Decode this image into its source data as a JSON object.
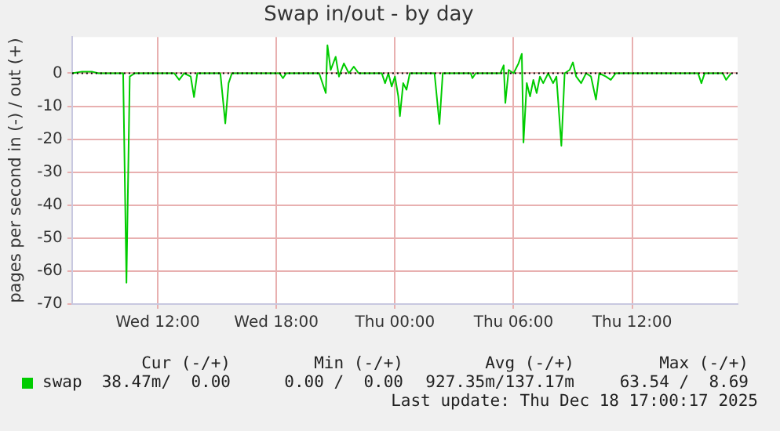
{
  "chart_data": {
    "type": "line",
    "title": "Swap in/out - by day",
    "ylabel": "pages per second in (-) / out (+)",
    "xlim": [
      "2025-12-17T07:40",
      "2025-12-18T17:20"
    ],
    "xticks": [
      {
        "value": "2025-12-17T12:00",
        "label": "Wed 12:00"
      },
      {
        "value": "2025-12-17T18:00",
        "label": "Wed 18:00"
      },
      {
        "value": "2025-12-18T00:00",
        "label": "Thu 00:00"
      },
      {
        "value": "2025-12-18T06:00",
        "label": "Thu 06:00"
      },
      {
        "value": "2025-12-18T12:00",
        "label": "Thu 12:00"
      }
    ],
    "ylim": [
      -70,
      11
    ],
    "yticks": [
      -70,
      -60,
      -50,
      -40,
      -30,
      -20,
      -10,
      0
    ],
    "grid": true,
    "legend": "bottom left",
    "marker": "none",
    "line_style": "solid",
    "ref_lines": [
      {
        "axis": "y",
        "value": 0,
        "color": "#000000",
        "line_style": "dotted"
      }
    ],
    "x": [
      "2025-12-17T07:40",
      "2025-12-17T08:10",
      "2025-12-17T08:40",
      "2025-12-17T09:00",
      "2025-12-17T10:15",
      "2025-12-17T10:25",
      "2025-12-17T10:35",
      "2025-12-17T10:50",
      "2025-12-17T12:50",
      "2025-12-17T13:05",
      "2025-12-17T13:20",
      "2025-12-17T13:40",
      "2025-12-17T13:50",
      "2025-12-17T14:00",
      "2025-12-17T15:10",
      "2025-12-17T15:25",
      "2025-12-17T15:35",
      "2025-12-17T15:45",
      "2025-12-17T18:10",
      "2025-12-17T18:20",
      "2025-12-17T18:30",
      "2025-12-17T20:10",
      "2025-12-17T20:30",
      "2025-12-17T20:35",
      "2025-12-17T20:45",
      "2025-12-17T21:00",
      "2025-12-17T21:10",
      "2025-12-17T21:25",
      "2025-12-17T21:40",
      "2025-12-17T21:55",
      "2025-12-17T22:10",
      "2025-12-17T23:20",
      "2025-12-17T23:30",
      "2025-12-17T23:40",
      "2025-12-17T23:50",
      "2025-12-18T00:00",
      "2025-12-18T00:10",
      "2025-12-18T00:15",
      "2025-12-18T00:25",
      "2025-12-18T00:35",
      "2025-12-18T00:45",
      "2025-12-18T02:00",
      "2025-12-18T02:15",
      "2025-12-18T02:25",
      "2025-12-18T03:50",
      "2025-12-18T03:55",
      "2025-12-18T04:05",
      "2025-12-18T05:20",
      "2025-12-18T05:30",
      "2025-12-18T05:35",
      "2025-12-18T05:45",
      "2025-12-18T06:00",
      "2025-12-18T06:15",
      "2025-12-18T06:25",
      "2025-12-18T06:30",
      "2025-12-18T06:40",
      "2025-12-18T06:50",
      "2025-12-18T07:00",
      "2025-12-18T07:10",
      "2025-12-18T07:20",
      "2025-12-18T07:30",
      "2025-12-18T07:45",
      "2025-12-18T08:00",
      "2025-12-18T08:10",
      "2025-12-18T08:25",
      "2025-12-18T08:35",
      "2025-12-18T08:50",
      "2025-12-18T09:00",
      "2025-12-18T09:10",
      "2025-12-18T09:25",
      "2025-12-18T09:40",
      "2025-12-18T09:55",
      "2025-12-18T10:10",
      "2025-12-18T10:20",
      "2025-12-18T10:40",
      "2025-12-18T10:55",
      "2025-12-18T11:10",
      "2025-12-18T15:20",
      "2025-12-18T15:30",
      "2025-12-18T15:40",
      "2025-12-18T16:35",
      "2025-12-18T16:45",
      "2025-12-18T17:00"
    ],
    "series": [
      {
        "name": "swap",
        "color": "#00cc00",
        "values": [
          0,
          0.5,
          0.5,
          0,
          0,
          -63.5,
          -1,
          0,
          0,
          -2,
          0,
          -1,
          -7.2,
          0,
          0,
          -15.2,
          -3,
          0,
          0,
          -1.5,
          0,
          0,
          -6,
          8.5,
          1,
          5,
          -1,
          3,
          0,
          2,
          0,
          0,
          -3,
          0,
          -4,
          -1,
          -7,
          -13,
          -3,
          -5,
          0,
          0,
          -15.4,
          0,
          0,
          -1.5,
          0,
          0,
          2.4,
          -9,
          1,
          0,
          3,
          5.9,
          -21,
          -3,
          -7,
          -2,
          -6,
          -1,
          -3,
          0,
          -3,
          -1,
          -22,
          0,
          1,
          3.3,
          -1,
          -3,
          0,
          -1,
          -8,
          0,
          -1,
          -2,
          0,
          0,
          -3,
          0,
          0,
          -2,
          0
        ]
      }
    ],
    "annotations": [
      "Cur (-/+)",
      "Min (-/+)",
      "Avg (-/+)",
      "Max (-/+)",
      "38.47m/  0.00",
      "0.00 /  0.00",
      "927.35m/137.17m",
      "63.54 /  8.69",
      "Last update: Thu Dec 18 17:00:17 2025"
    ]
  }
}
